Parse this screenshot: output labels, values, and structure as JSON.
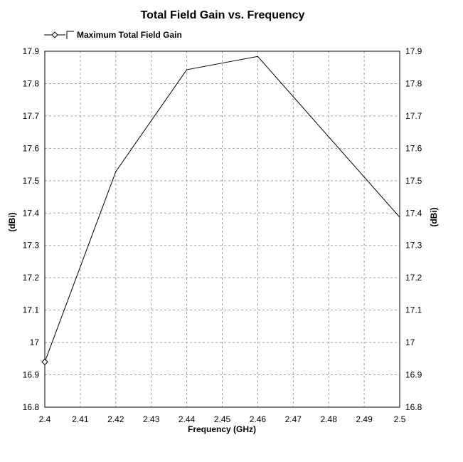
{
  "chart_data": {
    "type": "line",
    "title": "Total Field Gain vs. Frequency",
    "xlabel": "Frequency (GHz)",
    "ylabel": "(dBi)",
    "ylabel_right": "(dBi)",
    "xlim": [
      2.4,
      2.5
    ],
    "ylim": [
      16.8,
      17.9
    ],
    "x_ticks": [
      "2.4",
      "2.41",
      "2.42",
      "2.43",
      "2.44",
      "2.45",
      "2.46",
      "2.47",
      "2.48",
      "2.49",
      "2.5"
    ],
    "y_ticks": [
      "16.8",
      "16.9",
      "17",
      "17.1",
      "17.2",
      "17.3",
      "17.4",
      "17.5",
      "17.6",
      "17.7",
      "17.8",
      "17.9"
    ],
    "grid": true,
    "legend_position": "top-left",
    "series": [
      {
        "name": "Maximum Total Field Gain",
        "color": "#000000",
        "marker": "diamond",
        "x": [
          2.4,
          2.42,
          2.44,
          2.46,
          2.5
        ],
        "y": [
          16.94,
          17.528,
          17.843,
          17.884,
          17.387
        ]
      }
    ]
  }
}
